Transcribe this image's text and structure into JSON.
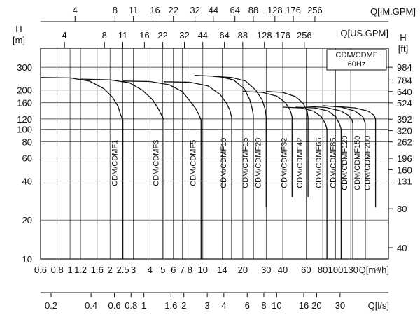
{
  "chart_data": {
    "type": "line",
    "scale": "log-log",
    "grid": true,
    "xlim": [
      0.6,
      250
    ],
    "ylim": [
      10,
      420
    ],
    "axes": {
      "x_main": {
        "label": "Q[m³/h]",
        "ticks": [
          0.6,
          0.8,
          1,
          1.2,
          1.6,
          2,
          2.5,
          3,
          4,
          5,
          6,
          7,
          8,
          10,
          14,
          20,
          30,
          40,
          60,
          80,
          100,
          130
        ],
        "tick_labels": [
          "0.6",
          "0.8",
          "1",
          "1.2",
          "1.6",
          "2",
          "2.5",
          "3",
          "4",
          "5",
          "6",
          "7",
          "8",
          "10",
          "14",
          "20",
          "30",
          "40",
          "60",
          "80",
          "100",
          "130"
        ]
      },
      "x_ls": {
        "label": "Q[l/s]",
        "ticks": [
          0.2,
          0.4,
          0.6,
          0.8,
          1,
          1.6,
          2,
          3,
          4,
          6,
          8,
          10,
          16,
          20,
          30
        ],
        "tick_labels": [
          "0.2",
          "0.4",
          "0.6",
          "0.8",
          "1",
          "1.6",
          "2",
          "3",
          "4",
          "6",
          "8",
          "10",
          "16",
          "20",
          "30"
        ]
      },
      "x_usgpm": {
        "label": "Q[US.GPM]",
        "ticks": [
          4,
          8,
          11,
          16,
          22,
          32,
          44,
          64,
          88,
          128,
          176,
          256
        ],
        "tick_labels": [
          "4",
          "8",
          "11",
          "16",
          "22",
          "32",
          "44",
          "64",
          "88",
          "128",
          "176",
          "256"
        ]
      },
      "x_imgpm": {
        "label": "Q[IM.GPM]",
        "ticks": [
          4,
          8,
          11,
          16,
          22,
          32,
          44,
          64,
          88,
          128,
          176,
          256
        ],
        "tick_labels": [
          "4",
          "8",
          "11",
          "16",
          "22",
          "32",
          "44",
          "64",
          "88",
          "128",
          "176",
          "256"
        ]
      },
      "y_m": {
        "label_top": "H",
        "label_unit": "[m]",
        "ticks": [
          10,
          20,
          40,
          60,
          80,
          100,
          120,
          160,
          200,
          300
        ],
        "tick_labels": [
          "10",
          "20",
          "40",
          "60",
          "80",
          "100",
          "120",
          "160",
          "200",
          "300"
        ]
      },
      "y_ft": {
        "label_top": "H",
        "label_unit": "[ft]",
        "ticks": [
          40,
          80,
          131,
          160,
          196,
          262,
          320,
          392,
          524,
          640,
          784,
          984
        ],
        "tick_labels": [
          "40",
          "80",
          "131",
          "160",
          "196",
          "262",
          "320",
          "392",
          "524",
          "640",
          "784",
          "984"
        ]
      }
    },
    "legend": {
      "line1": "CDM/CDMF",
      "line2": "60Hz",
      "placement": "top-right"
    },
    "series": [
      {
        "name": "CDM/CDMF1",
        "x": [
          0.6,
          1.0,
          1.4,
          1.8,
          2.1,
          2.3,
          2.4,
          2.5,
          2.5
        ],
        "y": [
          250,
          248,
          235,
          205,
          175,
          150,
          130,
          118,
          10
        ]
      },
      {
        "name": "CDM/CDMF3",
        "x": [
          1.2,
          2.0,
          2.8,
          3.5,
          4.2,
          4.6,
          4.9,
          5.1,
          5.1
        ],
        "y": [
          243,
          240,
          228,
          200,
          168,
          145,
          128,
          118,
          10
        ]
      },
      {
        "name": "CDM/CDMF5",
        "x": [
          2.5,
          4.0,
          5.6,
          7.0,
          8.0,
          8.8,
          9.4,
          9.7,
          9.7
        ],
        "y": [
          235,
          233,
          220,
          195,
          165,
          145,
          128,
          118,
          10
        ]
      },
      {
        "name": "CDM/CDMF10",
        "x": [
          5.1,
          8.0,
          11.0,
          13.5,
          15.0,
          16.0,
          16.5,
          16.5
        ],
        "y": [
          232,
          230,
          215,
          185,
          160,
          140,
          123,
          10
        ]
      },
      {
        "name": "CDM/CDMF15",
        "x": [
          8.7,
          13.0,
          17.0,
          20.5,
          22.5,
          23.5,
          24.0,
          24.0
        ],
        "y": [
          260,
          255,
          240,
          205,
          170,
          145,
          128,
          10
        ]
      },
      {
        "name": "CDM/CDMF20",
        "x": [
          12.0,
          16.5,
          21.0,
          25.0,
          28.0,
          29.5,
          30.0,
          30.0
        ],
        "y": [
          255,
          250,
          235,
          200,
          168,
          142,
          125,
          25
        ]
      },
      {
        "name": "CDM/CDMF32",
        "x": [
          20.0,
          28.0,
          36.0,
          42.0,
          45.5,
          47.0,
          47.0
        ],
        "y": [
          195,
          192,
          180,
          160,
          140,
          125,
          30
        ]
      },
      {
        "name": "CDM/CDMF42",
        "x": [
          30.0,
          40.0,
          50.0,
          57.0,
          61.0,
          62.0,
          62.0
        ],
        "y": [
          195,
          192,
          178,
          158,
          138,
          123,
          30
        ]
      },
      {
        "name": "CDM/CDMF65",
        "x": [
          40.0,
          55.0,
          68.0,
          78.0,
          84.0,
          86.0,
          86.0
        ],
        "y": [
          148,
          146,
          138,
          125,
          110,
          100,
          10
        ]
      },
      {
        "name": "CDM/CDMF85",
        "x": [
          50.0,
          70.0,
          88.0,
          100.0,
          107.0,
          110.0,
          110.0
        ],
        "y": [
          148,
          146,
          138,
          125,
          110,
          100,
          10
        ]
      },
      {
        "name": "CDM/CDMF120",
        "x": [
          60.0,
          85.0,
          110.0,
          125.0,
          133.0,
          135.0,
          135.0
        ],
        "y": [
          150,
          147,
          138,
          128,
          118,
          110,
          10
        ]
      },
      {
        "name": "CDM/CDMF150",
        "x": [
          80.0,
          110.0,
          140.0,
          160.0,
          167.0,
          167.0
        ],
        "y": [
          152,
          148,
          138,
          125,
          112,
          10
        ]
      },
      {
        "name": "CDM/CDMF200",
        "x": [
          100.0,
          140.0,
          175.0,
          195.0,
          200.0,
          200.0
        ],
        "y": [
          150,
          146,
          138,
          128,
          120,
          25
        ]
      }
    ]
  }
}
